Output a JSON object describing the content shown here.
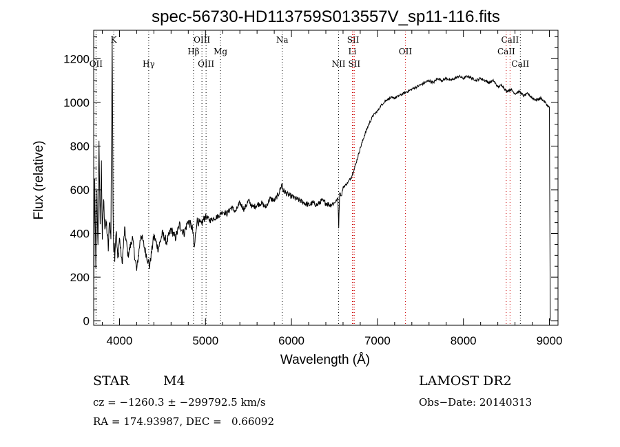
{
  "chart_data": {
    "type": "line",
    "title": "spec-56730-HD113759S013557V_sp11-116.fits",
    "xlabel": "Wavelength (Å)",
    "ylabel": "Flux (relative)",
    "xlim": [
      3700,
      9100
    ],
    "ylim": [
      -20,
      1330
    ],
    "xticks": [
      4000,
      5000,
      6000,
      7000,
      8000,
      9000
    ],
    "yticks": [
      0,
      200,
      400,
      600,
      800,
      1000,
      1200
    ],
    "grid": false,
    "series": [
      {
        "color": "#000000",
        "x": [
          3700,
          3712,
          3725,
          3738,
          3750,
          3762,
          3775,
          3790,
          3800,
          3815,
          3830,
          3850,
          3870,
          3885,
          3900,
          3915,
          3925,
          3933,
          3938,
          3945,
          3960,
          3980,
          4000,
          4030,
          4060,
          4100,
          4150,
          4200,
          4250,
          4300,
          4350,
          4400,
          4450,
          4500,
          4550,
          4600,
          4650,
          4700,
          4750,
          4800,
          4850,
          4870,
          4900,
          4950,
          5000,
          5050,
          5100,
          5150,
          5200,
          5250,
          5300,
          5350,
          5400,
          5450,
          5500,
          5550,
          5600,
          5650,
          5700,
          5750,
          5800,
          5850,
          5893,
          5900,
          5950,
          6000,
          6050,
          6100,
          6150,
          6200,
          6250,
          6300,
          6350,
          6400,
          6450,
          6500,
          6540,
          6550,
          6560,
          6580,
          6600,
          6650,
          6700,
          6750,
          6800,
          6850,
          6900,
          6950,
          7000,
          7050,
          7100,
          7150,
          7200,
          7250,
          7300,
          7350,
          7400,
          7450,
          7500,
          7550,
          7600,
          7650,
          7700,
          7750,
          7800,
          7850,
          7900,
          7950,
          8000,
          8050,
          8100,
          8150,
          8200,
          8250,
          8300,
          8350,
          8400,
          8450,
          8500,
          8550,
          8600,
          8650,
          8700,
          8750,
          8800,
          8850,
          8900,
          8950,
          8990,
          9000,
          9005,
          9010
        ],
        "values": [
          120,
          620,
          260,
          580,
          330,
          840,
          420,
          720,
          380,
          560,
          430,
          440,
          330,
          470,
          380,
          1310,
          520,
          330,
          380,
          300,
          420,
          280,
          380,
          260,
          420,
          300,
          380,
          230,
          400,
          320,
          250,
          390,
          330,
          400,
          360,
          420,
          380,
          440,
          400,
          460,
          420,
          330,
          460,
          440,
          480,
          460,
          470,
          480,
          500,
          490,
          520,
          500,
          540,
          510,
          550,
          520,
          530,
          540,
          520,
          560,
          550,
          580,
          630,
          600,
          580,
          570,
          560,
          550,
          540,
          530,
          540,
          530,
          550,
          540,
          530,
          540,
          560,
          430,
          590,
          570,
          610,
          630,
          660,
          720,
          790,
          850,
          900,
          940,
          960,
          990,
          1010,
          1020,
          1020,
          1030,
          1040,
          1050,
          1060,
          1070,
          1080,
          1090,
          1100,
          1090,
          1110,
          1100,
          1110,
          1100,
          1110,
          1120,
          1110,
          1120,
          1110,
          1100,
          1110,
          1100,
          1090,
          1100,
          1070,
          1080,
          1050,
          1060,
          1040,
          1050,
          1030,
          1040,
          1020,
          1010,
          1020,
          1000,
          980,
          980,
          500,
          0
        ]
      }
    ],
    "line_markers": [
      {
        "label": "K",
        "x": 3933,
        "color": "#000000",
        "row": 0
      },
      {
        "label": "OII",
        "x": 3727,
        "color": "#000000",
        "row": 2
      },
      {
        "label": "Hγ",
        "x": 4340,
        "color": "#000000",
        "row": 2
      },
      {
        "label": "Hβ",
        "x": 4861,
        "color": "#000000",
        "row": 1
      },
      {
        "label": "OIII",
        "x": 4959,
        "color": "#000000",
        "row": 0
      },
      {
        "label": "OIII",
        "x": 5007,
        "color": "#000000",
        "row": 2
      },
      {
        "label": "Mg",
        "x": 5175,
        "color": "#000000",
        "row": 1
      },
      {
        "label": "Na",
        "x": 5893,
        "color": "#000000",
        "row": 0
      },
      {
        "label": "NII",
        "x": 6548,
        "color": "#000000",
        "row": 2
      },
      {
        "label": "SII",
        "x": 6717,
        "color": "#cc0000",
        "row": 0
      },
      {
        "label": "Li",
        "x": 6708,
        "color": "#cc0000",
        "row": 1
      },
      {
        "label": "SII",
        "x": 6731,
        "color": "#cc0000",
        "row": 2
      },
      {
        "label": "OII",
        "x": 7325,
        "color": "#cc0000",
        "row": 1
      },
      {
        "label": "CaII",
        "x": 8542,
        "color": "#cc0000",
        "row": 0
      },
      {
        "label": "CaII",
        "x": 8498,
        "color": "#cc0000",
        "row": 1
      },
      {
        "label": "CaII",
        "x": 8662,
        "color": "#000000",
        "row": 2
      }
    ]
  },
  "info": {
    "object_type": "STAR",
    "subclass": "M4",
    "survey": "LAMOST DR2",
    "redshift_line": "cz = −1260.3 ± −299792.5 km/s",
    "obs_date_line": "Obs−Date: 20140313",
    "coords_line": "RA = 174.93987, DEC =   0.66092"
  }
}
